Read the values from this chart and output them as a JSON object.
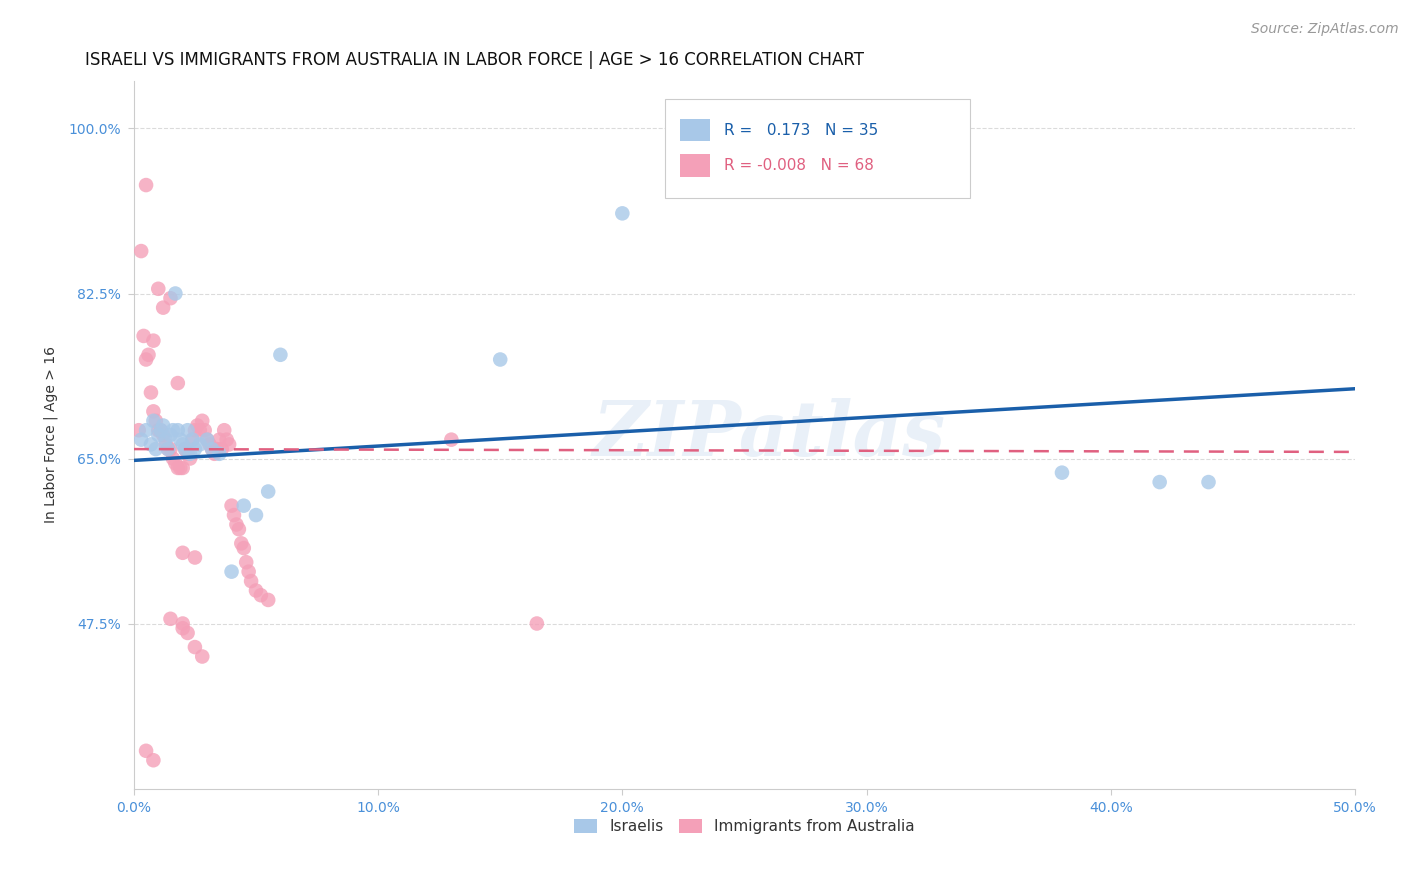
{
  "title": "ISRAELI VS IMMIGRANTS FROM AUSTRALIA IN LABOR FORCE | AGE > 16 CORRELATION CHART",
  "source": "Source: ZipAtlas.com",
  "ylabel_label": "In Labor Force | Age > 16",
  "x_ticks": [
    0.0,
    0.1,
    0.2,
    0.3,
    0.4,
    0.5
  ],
  "x_tick_labels": [
    "0.0%",
    "10.0%",
    "20.0%",
    "30.0%",
    "40.0%",
    "50.0%"
  ],
  "y_ticks": [
    0.475,
    0.65,
    0.825,
    1.0
  ],
  "y_tick_labels": [
    "47.5%",
    "65.0%",
    "82.5%",
    "100.0%"
  ],
  "xlim": [
    0.0,
    0.5
  ],
  "ylim": [
    0.3,
    1.05
  ],
  "blue_color": "#a8c8e8",
  "pink_color": "#f4a0b8",
  "blue_line_color": "#1a5faa",
  "pink_line_color": "#e06080",
  "watermark": "ZIPatlas",
  "background_color": "#ffffff",
  "grid_color": "#d8d8d8",
  "title_color": "#111111",
  "axis_label_color": "#333333",
  "tick_color": "#4a90d9",
  "title_fontsize": 12,
  "source_fontsize": 10,
  "legend_fontsize": 11,
  "ylabel_fontsize": 10,
  "israelis_x": [
    0.003,
    0.005,
    0.007,
    0.008,
    0.009,
    0.01,
    0.011,
    0.012,
    0.013,
    0.014,
    0.015,
    0.016,
    0.017,
    0.018,
    0.019,
    0.02,
    0.021,
    0.022,
    0.023,
    0.024,
    0.025,
    0.027,
    0.03,
    0.032,
    0.035,
    0.04,
    0.045,
    0.05,
    0.055,
    0.06,
    0.38,
    0.42,
    0.44,
    0.15,
    0.2
  ],
  "israelis_y": [
    0.67,
    0.68,
    0.665,
    0.69,
    0.66,
    0.675,
    0.68,
    0.685,
    0.67,
    0.66,
    0.675,
    0.68,
    0.825,
    0.68,
    0.67,
    0.665,
    0.66,
    0.68,
    0.655,
    0.67,
    0.66,
    0.665,
    0.67,
    0.66,
    0.655,
    0.53,
    0.6,
    0.59,
    0.615,
    0.76,
    0.635,
    0.625,
    0.625,
    0.755,
    0.91
  ],
  "immigrants_x": [
    0.002,
    0.003,
    0.004,
    0.005,
    0.006,
    0.007,
    0.008,
    0.009,
    0.01,
    0.011,
    0.012,
    0.013,
    0.014,
    0.015,
    0.016,
    0.017,
    0.018,
    0.019,
    0.02,
    0.021,
    0.022,
    0.023,
    0.024,
    0.025,
    0.026,
    0.027,
    0.028,
    0.029,
    0.03,
    0.031,
    0.032,
    0.033,
    0.034,
    0.035,
    0.036,
    0.037,
    0.038,
    0.039,
    0.04,
    0.041,
    0.042,
    0.043,
    0.044,
    0.045,
    0.046,
    0.047,
    0.048,
    0.05,
    0.052,
    0.055,
    0.005,
    0.008,
    0.01,
    0.012,
    0.015,
    0.018,
    0.02,
    0.022,
    0.025,
    0.028,
    0.005,
    0.008,
    0.015,
    0.02,
    0.13,
    0.165,
    0.02,
    0.025
  ],
  "immigrants_y": [
    0.68,
    0.87,
    0.78,
    0.755,
    0.76,
    0.72,
    0.7,
    0.69,
    0.68,
    0.68,
    0.675,
    0.665,
    0.66,
    0.66,
    0.65,
    0.645,
    0.64,
    0.64,
    0.64,
    0.66,
    0.655,
    0.65,
    0.67,
    0.68,
    0.685,
    0.68,
    0.69,
    0.68,
    0.67,
    0.665,
    0.66,
    0.655,
    0.66,
    0.67,
    0.66,
    0.68,
    0.67,
    0.665,
    0.6,
    0.59,
    0.58,
    0.575,
    0.56,
    0.555,
    0.54,
    0.53,
    0.52,
    0.51,
    0.505,
    0.5,
    0.94,
    0.775,
    0.83,
    0.81,
    0.82,
    0.73,
    0.475,
    0.465,
    0.45,
    0.44,
    0.34,
    0.33,
    0.48,
    0.47,
    0.67,
    0.475,
    0.55,
    0.545
  ]
}
